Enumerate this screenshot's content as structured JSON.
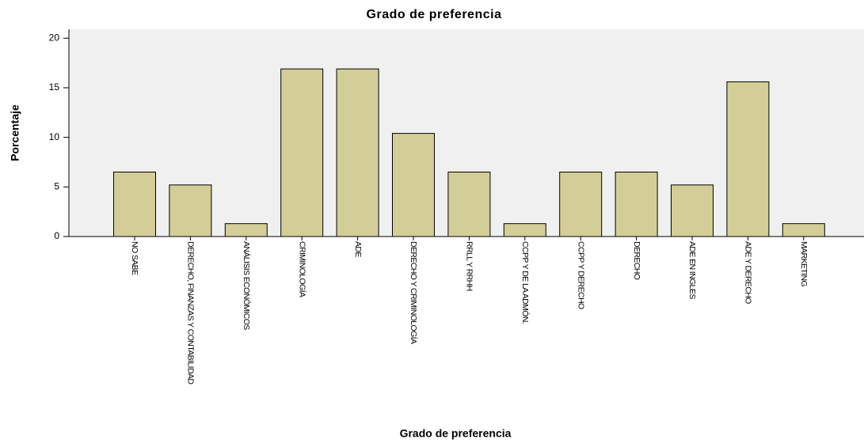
{
  "chart_data": {
    "type": "bar",
    "title": "Grado de preferencia",
    "x_label": "Grado de preferencia",
    "y_label": "Porcentaje",
    "categories": [
      "NO SABE",
      "DERECHO, FINANZAS Y CONTABILIDAD",
      "ANÁLISIS ECONÓMICOS",
      "CRIMINOLOGÍA",
      "ADE",
      "DERECHO Y CRIMINOLOGÍA",
      "RRLL Y RRHH",
      "CCPP Y DE LA ADMÓN.",
      "CCPP Y DERECHO",
      "DERECHO",
      "ADE EN INGLES",
      "ADE Y DERECHO",
      "MARKETING"
    ],
    "values": [
      6.5,
      5.2,
      1.3,
      16.9,
      16.9,
      10.4,
      6.5,
      1.3,
      6.5,
      6.5,
      5.2,
      15.6,
      1.3
    ],
    "color": "#d3ce98",
    "ylim": [
      0,
      20.9
    ],
    "yticks": [
      0,
      5,
      10,
      15,
      20
    ],
    "grid": false
  }
}
